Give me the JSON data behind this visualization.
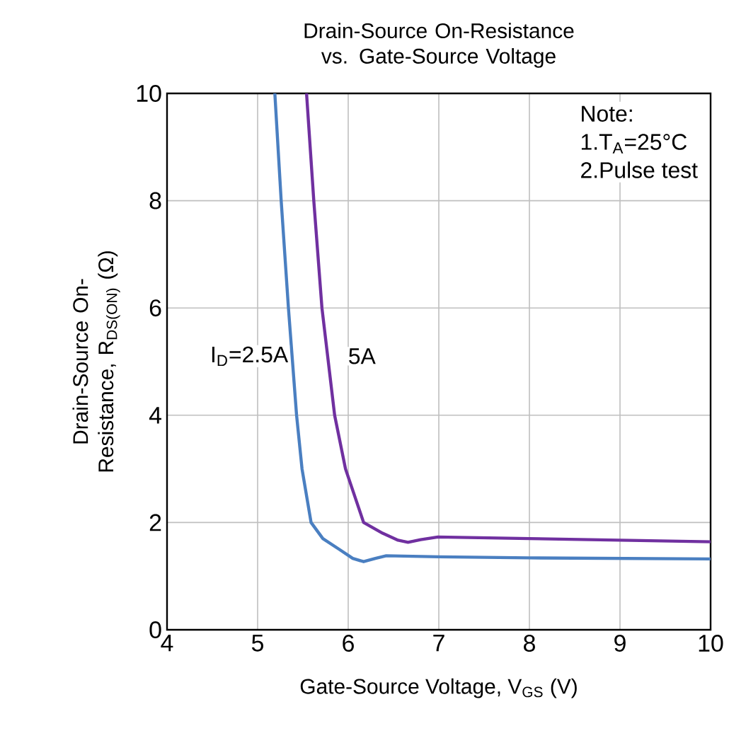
{
  "chart_data": {
    "type": "line",
    "title": "Drain-Source On-Resistance vs. Gate-Source Voltage",
    "xlabel": "Gate-Source Voltage, V$_{GS}$ (V)",
    "ylabel": "Drain-Source On-Resistance, R$_{DS(ON)}$ (Ω)",
    "xlim": [
      4,
      10
    ],
    "ylim": [
      0,
      10
    ],
    "xticks": [
      4,
      5,
      6,
      7,
      8,
      9,
      10
    ],
    "yticks": [
      0,
      2,
      4,
      6,
      8,
      10
    ],
    "grid": true,
    "annotations": [
      "Note:",
      "1.T$_{A}$=25°C",
      "2.Pulse test"
    ],
    "series": [
      {
        "name": "I$_{D}$=2.5A",
        "color": "#4a7fc1",
        "x": [
          5.19,
          5.26,
          5.34,
          5.43,
          5.49,
          5.59,
          5.72,
          5.9,
          6.05,
          6.17,
          6.3,
          6.42,
          7,
          8,
          9,
          10
        ],
        "values": [
          10,
          8,
          6,
          4,
          3,
          2,
          1.7,
          1.5,
          1.33,
          1.27,
          1.33,
          1.38,
          1.36,
          1.34,
          1.33,
          1.32
        ]
      },
      {
        "name": "5A",
        "color": "#7030a0",
        "x": [
          5.54,
          5.62,
          5.71,
          5.85,
          5.97,
          6.17,
          6.38,
          6.55,
          6.66,
          6.8,
          6.99,
          8,
          9,
          10
        ],
        "values": [
          10,
          8,
          6,
          4,
          3,
          2,
          1.8,
          1.67,
          1.63,
          1.68,
          1.73,
          1.7,
          1.67,
          1.64
        ]
      }
    ]
  }
}
